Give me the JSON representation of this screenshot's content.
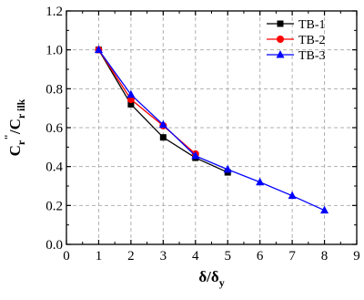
{
  "chart_data": {
    "type": "line",
    "title": "",
    "xlabel": {
      "main": "δ/δ",
      "sub": "y"
    },
    "ylabel": {
      "main": "C",
      "sub": "r",
      "sup": "\"",
      "rest": "/C",
      "rest_sub": "r ilk"
    },
    "xlim": [
      0,
      9
    ],
    "ylim": [
      0.0,
      1.2
    ],
    "xticks": [
      "0",
      "1",
      "2",
      "3",
      "4",
      "5",
      "6",
      "7",
      "8",
      "9"
    ],
    "yticks": [
      "0.0",
      "0.2",
      "0.4",
      "0.6",
      "0.8",
      "1.0",
      "1.2"
    ],
    "grid": true,
    "legend_position": "top-right",
    "series": [
      {
        "name": "TB-1",
        "color": "#000000",
        "marker": "square",
        "x": [
          1,
          2,
          3,
          4,
          5
        ],
        "y": [
          1.0,
          0.72,
          0.55,
          0.445,
          0.37
        ]
      },
      {
        "name": "TB-2",
        "color": "#ff0000",
        "marker": "circle",
        "x": [
          1,
          2,
          3,
          4
        ],
        "y": [
          1.0,
          0.745,
          0.61,
          0.465
        ]
      },
      {
        "name": "TB-3",
        "color": "#0000ff",
        "marker": "triangle",
        "x": [
          1,
          2,
          3,
          4,
          5,
          6,
          7,
          8
        ],
        "y": [
          1.0,
          0.77,
          0.615,
          0.455,
          0.385,
          0.32,
          0.25,
          0.175
        ]
      }
    ]
  }
}
